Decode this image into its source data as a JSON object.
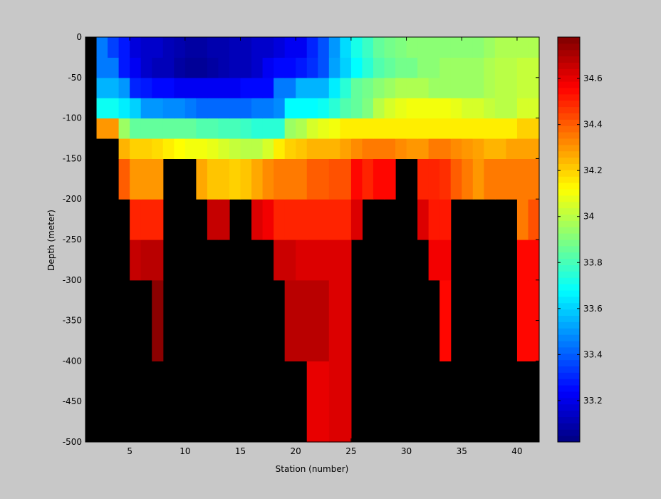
{
  "figure": {
    "background": "#c8c8c8",
    "missing_color": "#000000"
  },
  "chart_data": {
    "type": "heatmap",
    "title": "",
    "xlabel": "Station (number)",
    "ylabel": "Depth (meter)",
    "xlim": [
      1,
      42
    ],
    "ylim": [
      -500,
      0
    ],
    "xticks": [
      5,
      10,
      15,
      20,
      25,
      30,
      35,
      40
    ],
    "yticks": [
      0,
      -50,
      -100,
      -150,
      -200,
      -250,
      -300,
      -350,
      -400,
      -450,
      -500
    ],
    "colormap": "jet",
    "clim": [
      33.02,
      34.78
    ],
    "colorbar_ticks": [
      33.2,
      33.4,
      33.6,
      33.8,
      34,
      34.2,
      34.4,
      34.6
    ],
    "grid": false,
    "legend": "colorbar-right",
    "x_edges": [
      2,
      3,
      4,
      5,
      6,
      7,
      8,
      9,
      10,
      11,
      12,
      13,
      14,
      15,
      16,
      17,
      18,
      19,
      20,
      21,
      22,
      23,
      24,
      25,
      26,
      27,
      28,
      29,
      30,
      31,
      32,
      33,
      34,
      35,
      36,
      37,
      38,
      39,
      40,
      41,
      42
    ],
    "y_edges": [
      -500,
      -400,
      -300,
      -250,
      -200,
      -150,
      -125,
      -100,
      -75,
      -50,
      -25,
      0
    ],
    "rows": [
      [
        null,
        null,
        null,
        null,
        null,
        null,
        null,
        null,
        null,
        null,
        null,
        null,
        null,
        null,
        null,
        null,
        null,
        null,
        null,
        34.6,
        34.6,
        34.62,
        34.62,
        null,
        null,
        null,
        null,
        null,
        null,
        null,
        null,
        null,
        null,
        null,
        null,
        null,
        null,
        null,
        null,
        null
      ],
      [
        null,
        null,
        null,
        null,
        null,
        34.76,
        null,
        null,
        null,
        null,
        null,
        null,
        null,
        null,
        null,
        null,
        null,
        34.68,
        34.68,
        34.68,
        34.68,
        34.62,
        34.62,
        null,
        null,
        null,
        null,
        null,
        null,
        null,
        null,
        34.55,
        null,
        null,
        null,
        null,
        null,
        null,
        34.55,
        34.55
      ],
      [
        null,
        null,
        null,
        34.66,
        34.68,
        34.68,
        null,
        null,
        null,
        null,
        null,
        null,
        null,
        null,
        null,
        null,
        34.65,
        34.65,
        34.62,
        34.62,
        34.62,
        34.62,
        34.62,
        null,
        null,
        null,
        null,
        null,
        null,
        null,
        34.58,
        34.58,
        null,
        null,
        null,
        null,
        null,
        null,
        34.55,
        34.55
      ],
      [
        null,
        null,
        null,
        34.5,
        34.5,
        34.5,
        null,
        null,
        null,
        null,
        34.66,
        34.66,
        null,
        null,
        34.62,
        34.58,
        34.5,
        34.5,
        34.5,
        34.5,
        34.5,
        34.5,
        34.5,
        34.62,
        null,
        null,
        null,
        null,
        null,
        34.62,
        34.52,
        34.52,
        null,
        null,
        null,
        null,
        null,
        null,
        34.35,
        34.42
      ],
      [
        null,
        null,
        34.4,
        34.3,
        34.3,
        34.3,
        null,
        null,
        null,
        34.27,
        34.22,
        34.22,
        34.2,
        34.22,
        34.27,
        34.32,
        34.35,
        34.35,
        34.35,
        34.4,
        34.4,
        34.42,
        34.42,
        34.55,
        34.5,
        34.55,
        34.55,
        null,
        null,
        34.5,
        34.5,
        34.48,
        34.4,
        34.35,
        34.3,
        34.35,
        34.35,
        34.35,
        34.35,
        34.35
      ],
      [
        null,
        null,
        34.25,
        34.2,
        34.2,
        34.18,
        34.15,
        34.12,
        34.1,
        34.1,
        34.08,
        34.05,
        34.02,
        34,
        34.0,
        34.05,
        34.15,
        34.2,
        34.22,
        34.25,
        34.25,
        34.25,
        34.28,
        34.32,
        34.35,
        34.35,
        34.35,
        34.32,
        34.3,
        34.3,
        34.35,
        34.35,
        34.32,
        34.3,
        34.28,
        34.25,
        34.25,
        34.28,
        34.28,
        34.28
      ],
      [
        34.3,
        34.3,
        33.95,
        33.85,
        33.85,
        33.85,
        33.85,
        33.85,
        33.85,
        33.82,
        33.82,
        33.8,
        33.8,
        33.78,
        33.75,
        33.75,
        33.75,
        33.95,
        33.98,
        34.05,
        34.08,
        34.1,
        34.15,
        34.15,
        34.15,
        34.15,
        34.15,
        34.15,
        34.15,
        34.15,
        34.15,
        34.15,
        34.15,
        34.15,
        34.15,
        34.15,
        34.15,
        34.15,
        34.2,
        34.2
      ],
      [
        33.7,
        33.7,
        33.65,
        33.6,
        33.5,
        33.5,
        33.48,
        33.48,
        33.45,
        33.42,
        33.42,
        33.42,
        33.42,
        33.42,
        33.45,
        33.45,
        33.48,
        33.68,
        33.68,
        33.68,
        33.7,
        33.75,
        33.82,
        33.85,
        33.9,
        34.0,
        34.05,
        34.08,
        34.1,
        34.1,
        34.1,
        34.1,
        34.08,
        34.05,
        34.05,
        34.02,
        34.0,
        34.0,
        34.05,
        34.05
      ],
      [
        33.55,
        33.55,
        33.5,
        33.3,
        33.28,
        33.25,
        33.25,
        33.22,
        33.22,
        33.22,
        33.22,
        33.22,
        33.22,
        33.25,
        33.25,
        33.25,
        33.45,
        33.45,
        33.55,
        33.55,
        33.55,
        33.65,
        33.75,
        33.85,
        33.88,
        33.92,
        33.95,
        33.98,
        33.98,
        33.98,
        33.95,
        33.95,
        33.95,
        33.95,
        33.95,
        33.98,
        34.0,
        34.0,
        34.02,
        34.02
      ],
      [
        33.45,
        33.45,
        33.28,
        33.22,
        33.15,
        33.12,
        33.12,
        33.08,
        33.06,
        33.06,
        33.08,
        33.1,
        33.12,
        33.12,
        33.15,
        33.22,
        33.25,
        33.25,
        33.28,
        33.32,
        33.38,
        33.52,
        33.6,
        33.68,
        33.75,
        33.82,
        33.85,
        33.88,
        33.88,
        33.92,
        33.92,
        33.95,
        33.95,
        33.95,
        33.95,
        33.98,
        34.0,
        34.0,
        34.02,
        34.02
      ],
      [
        33.45,
        33.35,
        33.28,
        33.18,
        33.15,
        33.15,
        33.12,
        33.1,
        33.08,
        33.08,
        33.1,
        33.1,
        33.12,
        33.12,
        33.15,
        33.15,
        33.18,
        33.22,
        33.22,
        33.3,
        33.38,
        33.5,
        33.62,
        33.72,
        33.78,
        33.85,
        33.88,
        33.9,
        33.92,
        33.92,
        33.92,
        33.92,
        33.92,
        33.92,
        33.92,
        33.95,
        33.98,
        33.98,
        33.98,
        33.98
      ]
    ]
  },
  "axes_labels": {
    "x_title": "Station (number)",
    "y_title": "Depth (meter)"
  }
}
